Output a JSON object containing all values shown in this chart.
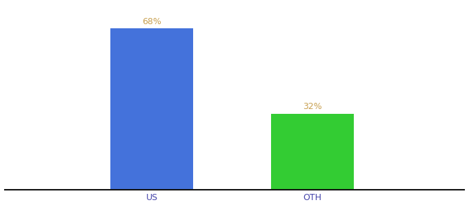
{
  "categories": [
    "US",
    "OTH"
  ],
  "values": [
    68,
    32
  ],
  "bar_colors": [
    "#4472db",
    "#33cc33"
  ],
  "label_color": "#c8a050",
  "label_fontsize": 9,
  "tick_fontsize": 9,
  "tick_color": "#4444aa",
  "background_color": "#ffffff",
  "ylim": [
    0,
    78
  ],
  "bar_width": 0.18,
  "spine_color": "#111111",
  "xlim": [
    0.0,
    1.0
  ]
}
